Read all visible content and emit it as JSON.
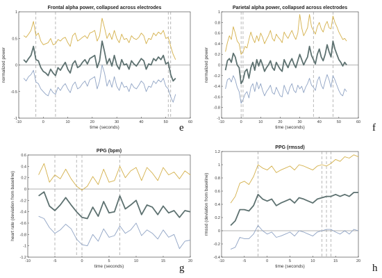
{
  "chart_data": [
    {
      "type": "line",
      "title": "Frontal alpha power, collapsed across electrodes",
      "xlabel": "time (seconds)",
      "ylabel": "normalized power",
      "xlim": [
        -10,
        60
      ],
      "ylim": [
        -1,
        1
      ],
      "xticks": [
        "-10",
        "0",
        "10",
        "20",
        "30",
        "40",
        "50",
        "60"
      ],
      "yticks": [
        "-1",
        "-0.5",
        "0",
        "0.5",
        "1"
      ],
      "panel_label": "e",
      "event_lines": [
        -3,
        5,
        51,
        52
      ],
      "x": [
        -8,
        -7,
        -6,
        -5,
        -4,
        -3,
        -2,
        -1,
        0,
        1,
        2,
        3,
        4,
        5,
        6,
        7,
        8,
        9,
        10,
        11,
        12,
        13,
        14,
        15,
        16,
        17,
        18,
        19,
        20,
        21,
        22,
        23,
        24,
        25,
        26,
        27,
        28,
        29,
        30,
        31,
        32,
        33,
        34,
        35,
        36,
        37,
        38,
        39,
        40,
        41,
        42,
        43,
        44,
        45,
        46,
        47,
        48,
        49,
        50,
        51,
        52,
        53,
        54
      ],
      "series": [
        {
          "role": "upper",
          "color": "#d4b04a",
          "values": [
            0.55,
            0.52,
            0.58,
            0.65,
            0.82,
            0.55,
            0.6,
            0.45,
            0.38,
            0.4,
            0.42,
            0.5,
            0.38,
            0.4,
            0.48,
            0.45,
            0.5,
            0.52,
            0.42,
            0.35,
            0.55,
            0.6,
            0.45,
            0.48,
            0.52,
            0.55,
            0.5,
            0.6,
            0.62,
            0.65,
            0.45,
            0.55,
            0.88,
            0.7,
            0.5,
            0.6,
            0.48,
            0.65,
            0.5,
            0.42,
            0.58,
            0.48,
            0.5,
            0.42,
            0.55,
            0.5,
            0.48,
            0.52,
            0.6,
            0.55,
            0.4,
            0.5,
            0.48,
            0.6,
            0.55,
            0.62,
            0.58,
            0.65,
            0.5,
            0.52,
            0.35,
            0.2,
            0.1
          ]
        },
        {
          "role": "mean",
          "color": "#5d7170",
          "values": [
            0.1,
            0.05,
            0.12,
            0.18,
            0.35,
            0.1,
            0.08,
            -0.05,
            -0.12,
            -0.15,
            -0.2,
            -0.08,
            -0.15,
            -0.2,
            -0.05,
            -0.1,
            -0.02,
            0.05,
            -0.08,
            -0.15,
            0.02,
            0.08,
            -0.05,
            -0.02,
            0.05,
            0.1,
            0.02,
            0.12,
            0.15,
            0.18,
            -0.05,
            0.08,
            0.45,
            0.25,
            0.02,
            0.12,
            -0.02,
            0.18,
            0.0,
            -0.08,
            0.1,
            0.0,
            0.02,
            -0.08,
            0.08,
            0.02,
            -0.02,
            0.05,
            0.12,
            0.08,
            -0.08,
            0.02,
            0.0,
            0.12,
            0.08,
            0.15,
            0.1,
            0.18,
            0.02,
            0.05,
            -0.18,
            -0.3,
            -0.25
          ]
        },
        {
          "role": "lower",
          "color": "#8fa3c4",
          "values": [
            -0.25,
            -0.3,
            -0.22,
            -0.18,
            -0.1,
            -0.32,
            -0.35,
            -0.45,
            -0.5,
            -0.55,
            -0.58,
            -0.45,
            -0.52,
            -0.55,
            -0.42,
            -0.48,
            -0.4,
            -0.35,
            -0.45,
            -0.52,
            -0.38,
            -0.32,
            -0.45,
            -0.42,
            -0.35,
            -0.3,
            -0.4,
            -0.28,
            -0.25,
            -0.22,
            -0.45,
            -0.3,
            0.0,
            -0.15,
            -0.4,
            -0.28,
            -0.42,
            -0.22,
            -0.4,
            -0.48,
            -0.32,
            -0.42,
            -0.4,
            -0.5,
            -0.35,
            -0.42,
            -0.45,
            -0.38,
            -0.3,
            -0.35,
            -0.5,
            -0.4,
            -0.42,
            -0.3,
            -0.35,
            -0.28,
            -0.32,
            -0.25,
            -0.4,
            -0.45,
            -0.6,
            -0.7,
            -0.55
          ]
        }
      ]
    },
    {
      "type": "line",
      "title": "Parietal alpha power, collapsed across electrodes",
      "xlabel": "time (seconds)",
      "ylabel": "normalized power",
      "xlim": [
        -10,
        60
      ],
      "ylim": [
        -1,
        1
      ],
      "xticks": [
        "-10",
        "0",
        "10",
        "20",
        "30",
        "40",
        "50",
        "60"
      ],
      "yticks": [
        "-1",
        "-0.8",
        "-0.6",
        "-0.4",
        "-0.2",
        "0",
        "0.2",
        "0.4",
        "0.6",
        "0.8",
        "1"
      ],
      "panel_label": "f",
      "event_lines": [
        0,
        1,
        37,
        47
      ],
      "x": [
        -8,
        -7,
        -6,
        -5,
        -4,
        -3,
        -2,
        -1,
        0,
        1,
        2,
        3,
        4,
        5,
        6,
        7,
        8,
        9,
        10,
        11,
        12,
        13,
        14,
        15,
        16,
        17,
        18,
        19,
        20,
        21,
        22,
        23,
        24,
        25,
        26,
        27,
        28,
        29,
        30,
        31,
        32,
        33,
        34,
        35,
        36,
        37,
        38,
        39,
        40,
        41,
        42,
        43,
        44,
        45,
        46,
        47,
        48,
        49,
        50,
        51,
        52,
        53,
        54
      ],
      "series": [
        {
          "role": "upper",
          "color": "#d4b04a",
          "values": [
            0.25,
            0.42,
            0.55,
            0.48,
            0.72,
            0.6,
            0.45,
            0.4,
            0.2,
            0.25,
            0.35,
            0.32,
            0.48,
            0.62,
            0.5,
            0.42,
            0.55,
            0.45,
            0.6,
            0.52,
            0.4,
            0.48,
            0.55,
            0.65,
            0.5,
            0.45,
            0.58,
            0.52,
            0.48,
            0.42,
            0.62,
            0.55,
            0.5,
            0.58,
            0.65,
            0.55,
            0.48,
            0.6,
            0.95,
            0.7,
            0.55,
            0.62,
            0.7,
            0.95,
            0.72,
            0.65,
            0.58,
            0.72,
            0.8,
            0.68,
            0.62,
            0.75,
            0.82,
            0.7,
            0.68,
            0.92,
            0.8,
            0.72,
            0.62,
            0.55,
            0.48,
            0.5,
            0.45
          ]
        },
        {
          "role": "mean",
          "color": "#5d7170",
          "values": [
            -0.1,
            0.08,
            0.12,
            0.05,
            0.22,
            0.15,
            0.0,
            -0.05,
            -0.35,
            -0.28,
            -0.12,
            -0.08,
            -0.25,
            -0.05,
            0.05,
            -0.1,
            0.1,
            -0.02,
            0.1,
            0.0,
            -0.12,
            -0.05,
            0.0,
            0.08,
            -0.05,
            -0.1,
            0.05,
            -0.02,
            -0.08,
            -0.12,
            0.1,
            0.02,
            -0.05,
            0.05,
            0.12,
            0.02,
            -0.05,
            0.08,
            0.2,
            0.1,
            0.0,
            0.08,
            0.15,
            0.35,
            0.18,
            0.1,
            0.02,
            0.2,
            0.3,
            0.15,
            0.08,
            0.2,
            0.38,
            0.25,
            0.15,
            0.45,
            0.3,
            0.2,
            0.1,
            0.05,
            -0.02,
            0.05,
            0.0
          ]
        },
        {
          "role": "lower",
          "color": "#8fa3c4",
          "values": [
            -0.45,
            -0.28,
            -0.25,
            -0.32,
            -0.2,
            -0.28,
            -0.42,
            -0.5,
            -0.72,
            -0.65,
            -0.55,
            -0.5,
            -0.62,
            -0.42,
            -0.35,
            -0.5,
            -0.32,
            -0.45,
            -0.35,
            -0.48,
            -0.58,
            -0.5,
            -0.45,
            -0.38,
            -0.52,
            -0.55,
            -0.42,
            -0.5,
            -0.58,
            -0.6,
            -0.38,
            -0.48,
            -0.55,
            -0.42,
            -0.35,
            -0.48,
            -0.52,
            -0.38,
            -0.45,
            -0.4,
            -0.52,
            -0.42,
            -0.35,
            -0.25,
            -0.38,
            -0.42,
            -0.48,
            -0.3,
            -0.22,
            -0.38,
            -0.45,
            -0.3,
            -0.18,
            -0.28,
            -0.42,
            -0.2,
            -0.28,
            -0.38,
            -0.48,
            -0.55,
            -0.58,
            -0.45,
            -0.5
          ]
        }
      ]
    },
    {
      "type": "line",
      "title": "PPG (bpm)",
      "xlabel": "time (seconds)",
      "ylabel": "heart rate (deviation from baseline)",
      "xlim": [
        -10,
        20
      ],
      "ylim": [
        -1.2,
        0.6
      ],
      "xticks": [
        "-10",
        "-5",
        "0",
        "5",
        "10",
        "15",
        "20"
      ],
      "yticks": [
        "-1.2",
        "-1",
        "-0.8",
        "-0.6",
        "-0.4",
        "-0.2",
        "0",
        "0.2",
        "0.4",
        "0.6"
      ],
      "panel_label": "g",
      "event_lines": [
        -5,
        -1,
        0,
        7
      ],
      "x": [
        -8,
        -7,
        -6,
        -5,
        -4,
        -3,
        -2,
        -1,
        0,
        1,
        2,
        3,
        4,
        5,
        6,
        7,
        8,
        9,
        10,
        11,
        12,
        13,
        14,
        15,
        16,
        17,
        18,
        19,
        20
      ],
      "series": [
        {
          "role": "upper",
          "color": "#d4b04a",
          "values": [
            0.25,
            0.45,
            0.12,
            0.25,
            0.18,
            0.35,
            0.18,
            0.05,
            -0.02,
            0.05,
            0.22,
            0.08,
            0.35,
            0.12,
            0.15,
            0.4,
            0.2,
            0.32,
            0.38,
            0.15,
            0.38,
            0.28,
            0.15,
            0.38,
            0.25,
            0.3,
            0.18,
            0.32,
            0.25
          ]
        },
        {
          "role": "mean",
          "color": "#5d7170",
          "values": [
            -0.12,
            -0.05,
            -0.3,
            -0.38,
            -0.28,
            -0.15,
            -0.28,
            -0.4,
            -0.5,
            -0.52,
            -0.32,
            -0.48,
            -0.22,
            -0.42,
            -0.4,
            -0.12,
            -0.35,
            -0.28,
            -0.2,
            -0.45,
            -0.28,
            -0.32,
            -0.45,
            -0.3,
            -0.42,
            -0.38,
            -0.5,
            -0.38,
            -0.4
          ]
        },
        {
          "role": "lower",
          "color": "#8fa3c4",
          "values": [
            -0.48,
            -0.52,
            -0.68,
            -0.78,
            -0.72,
            -0.62,
            -0.7,
            -0.88,
            -0.98,
            -1.0,
            -0.8,
            -0.92,
            -0.7,
            -0.85,
            -0.82,
            -0.65,
            -0.78,
            -0.72,
            -0.6,
            -0.82,
            -0.72,
            -0.78,
            -0.88,
            -0.72,
            -0.85,
            -0.8,
            -1.05,
            -0.92,
            -0.9
          ]
        }
      ]
    },
    {
      "type": "line",
      "title": "PPG (rmssd)",
      "xlabel": "time (seconds)",
      "ylabel": "rmssd (deviation from baseline)",
      "xlim": [
        -10,
        20
      ],
      "ylim": [
        -0.4,
        1.2
      ],
      "xticks": [
        "-10",
        "-5",
        "0",
        "5",
        "10",
        "15",
        "20"
      ],
      "yticks": [
        "-0.4",
        "-0.2",
        "0",
        "0.2",
        "0.4",
        "0.6",
        "0.8",
        "1",
        "1.2"
      ],
      "panel_label": "h",
      "event_lines": [
        -2,
        12,
        13,
        14
      ],
      "x": [
        -8,
        -7,
        -6,
        -5,
        -4,
        -3,
        -2,
        -1,
        0,
        1,
        2,
        3,
        4,
        5,
        6,
        7,
        8,
        9,
        10,
        11,
        12,
        13,
        14,
        15,
        16,
        17,
        18,
        19,
        20
      ],
      "series": [
        {
          "role": "upper",
          "color": "#d4b04a",
          "values": [
            0.42,
            0.52,
            0.72,
            0.75,
            0.7,
            0.82,
            1.0,
            0.95,
            0.92,
            0.98,
            0.88,
            0.92,
            0.95,
            0.98,
            0.92,
            1.0,
            0.98,
            0.95,
            0.92,
            0.98,
            1.0,
            0.98,
            1.02,
            1.08,
            1.05,
            1.12,
            1.1,
            1.15,
            1.12
          ]
        },
        {
          "role": "mean",
          "color": "#5d7170",
          "values": [
            0.08,
            0.15,
            0.32,
            0.32,
            0.3,
            0.38,
            0.55,
            0.48,
            0.45,
            0.48,
            0.38,
            0.42,
            0.45,
            0.48,
            0.42,
            0.5,
            0.48,
            0.45,
            0.42,
            0.48,
            0.5,
            0.52,
            0.52,
            0.55,
            0.52,
            0.55,
            0.52,
            0.58,
            0.58
          ]
        },
        {
          "role": "lower",
          "color": "#8fa3c4",
          "values": [
            -0.28,
            -0.25,
            -0.1,
            -0.12,
            -0.12,
            -0.05,
            0.08,
            0.0,
            -0.05,
            -0.02,
            -0.1,
            -0.08,
            -0.05,
            -0.02,
            -0.08,
            0.0,
            -0.02,
            -0.05,
            -0.08,
            -0.02,
            0.0,
            0.02,
            0.02,
            -0.02,
            -0.05,
            0.0,
            -0.05,
            0.02,
            0.0
          ]
        }
      ]
    }
  ]
}
